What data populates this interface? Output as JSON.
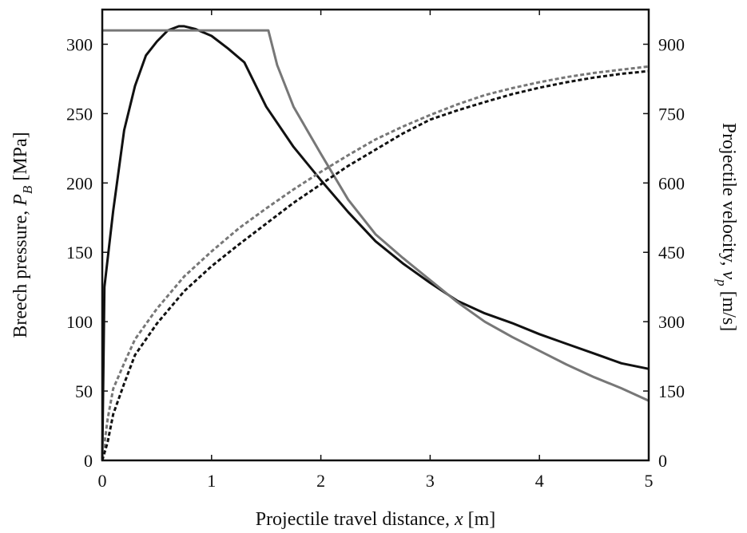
{
  "chart_data": {
    "type": "line",
    "xlabel_parts": [
      "Projectile travel distance, ",
      "x",
      " [m]"
    ],
    "ylabel_left_parts": [
      "Breech pressure, ",
      "P",
      "B",
      " [MPa]"
    ],
    "ylabel_right_parts": [
      "Projectile velocity, ",
      "v",
      "p",
      " [m/s]"
    ],
    "xlim": [
      0,
      5
    ],
    "ylim_left": [
      0,
      325
    ],
    "ylim_right": [
      0,
      975
    ],
    "grid": false,
    "x_ticks": [
      0,
      1,
      2,
      3,
      4,
      5
    ],
    "y_left_ticks": [
      0,
      50,
      100,
      150,
      200,
      250,
      300
    ],
    "y_right_ticks": [
      0,
      150,
      300,
      450,
      600,
      750,
      900
    ],
    "x_tick_labels": [
      "0",
      "1",
      "2",
      "3",
      "4",
      "5"
    ],
    "y_left_tick_labels": [
      "0",
      "50",
      "100",
      "150",
      "200",
      "250",
      "300"
    ],
    "y_right_tick_labels": [
      "0",
      "150",
      "300",
      "450",
      "600",
      "750",
      "900"
    ],
    "colors": {
      "black": "#111111",
      "gray": "#777777"
    },
    "series": [
      {
        "axis": "left",
        "color": "#111111",
        "dash": "solid",
        "points": [
          [
            0,
            0
          ],
          [
            0.02,
            125
          ],
          [
            0.1,
            180
          ],
          [
            0.2,
            238
          ],
          [
            0.3,
            270
          ],
          [
            0.4,
            292
          ],
          [
            0.5,
            302
          ],
          [
            0.6,
            310
          ],
          [
            0.7,
            313
          ],
          [
            0.75,
            313
          ],
          [
            0.85,
            311
          ],
          [
            1.0,
            306
          ],
          [
            1.15,
            297
          ],
          [
            1.3,
            287
          ],
          [
            1.5,
            255
          ],
          [
            1.75,
            226
          ],
          [
            2.0,
            202
          ],
          [
            2.25,
            179
          ],
          [
            2.5,
            158
          ],
          [
            2.75,
            142
          ],
          [
            3.0,
            128
          ],
          [
            3.25,
            115
          ],
          [
            3.5,
            106
          ],
          [
            3.75,
            99
          ],
          [
            4.0,
            91
          ],
          [
            4.25,
            84
          ],
          [
            4.5,
            77
          ],
          [
            4.75,
            70
          ],
          [
            5.0,
            66
          ]
        ]
      },
      {
        "axis": "left",
        "color": "#777777",
        "dash": "solid",
        "points": [
          [
            0,
            310
          ],
          [
            1.52,
            310
          ],
          [
            1.6,
            285
          ],
          [
            1.75,
            255
          ],
          [
            2.0,
            221
          ],
          [
            2.25,
            188
          ],
          [
            2.5,
            163
          ],
          [
            2.75,
            146
          ],
          [
            3.0,
            130
          ],
          [
            3.25,
            114
          ],
          [
            3.5,
            100
          ],
          [
            3.75,
            89
          ],
          [
            4.0,
            79
          ],
          [
            4.25,
            69
          ],
          [
            4.5,
            60
          ],
          [
            4.75,
            52
          ],
          [
            5.0,
            43
          ]
        ]
      },
      {
        "axis": "right",
        "color": "#777777",
        "dash": "dashed",
        "points": [
          [
            0,
            0
          ],
          [
            0.05,
            90
          ],
          [
            0.1,
            155
          ],
          [
            0.2,
            210
          ],
          [
            0.3,
            262
          ],
          [
            0.5,
            328
          ],
          [
            0.75,
            398
          ],
          [
            1.0,
            452
          ],
          [
            1.25,
            502
          ],
          [
            1.5,
            545
          ],
          [
            1.75,
            586
          ],
          [
            2.0,
            624
          ],
          [
            2.25,
            660
          ],
          [
            2.5,
            694
          ],
          [
            2.75,
            722
          ],
          [
            3.0,
            747
          ],
          [
            3.25,
            770
          ],
          [
            3.5,
            790
          ],
          [
            3.75,
            805
          ],
          [
            4.0,
            818
          ],
          [
            4.25,
            829
          ],
          [
            4.5,
            838
          ],
          [
            4.75,
            845
          ],
          [
            5.0,
            852
          ]
        ]
      },
      {
        "axis": "right",
        "color": "#111111",
        "dash": "dashed",
        "points": [
          [
            0,
            0
          ],
          [
            0.05,
            40
          ],
          [
            0.1,
            100
          ],
          [
            0.2,
            166
          ],
          [
            0.3,
            228
          ],
          [
            0.5,
            296
          ],
          [
            0.75,
            366
          ],
          [
            1.0,
            420
          ],
          [
            1.25,
            467
          ],
          [
            1.5,
            512
          ],
          [
            1.75,
            557
          ],
          [
            2.0,
            597
          ],
          [
            2.25,
            637
          ],
          [
            2.5,
            672
          ],
          [
            2.75,
            707
          ],
          [
            3.0,
            737
          ],
          [
            3.25,
            757
          ],
          [
            3.5,
            775
          ],
          [
            3.75,
            792
          ],
          [
            4.0,
            806
          ],
          [
            4.25,
            818
          ],
          [
            4.5,
            828
          ],
          [
            4.75,
            836
          ],
          [
            5.0,
            842
          ]
        ]
      }
    ]
  }
}
